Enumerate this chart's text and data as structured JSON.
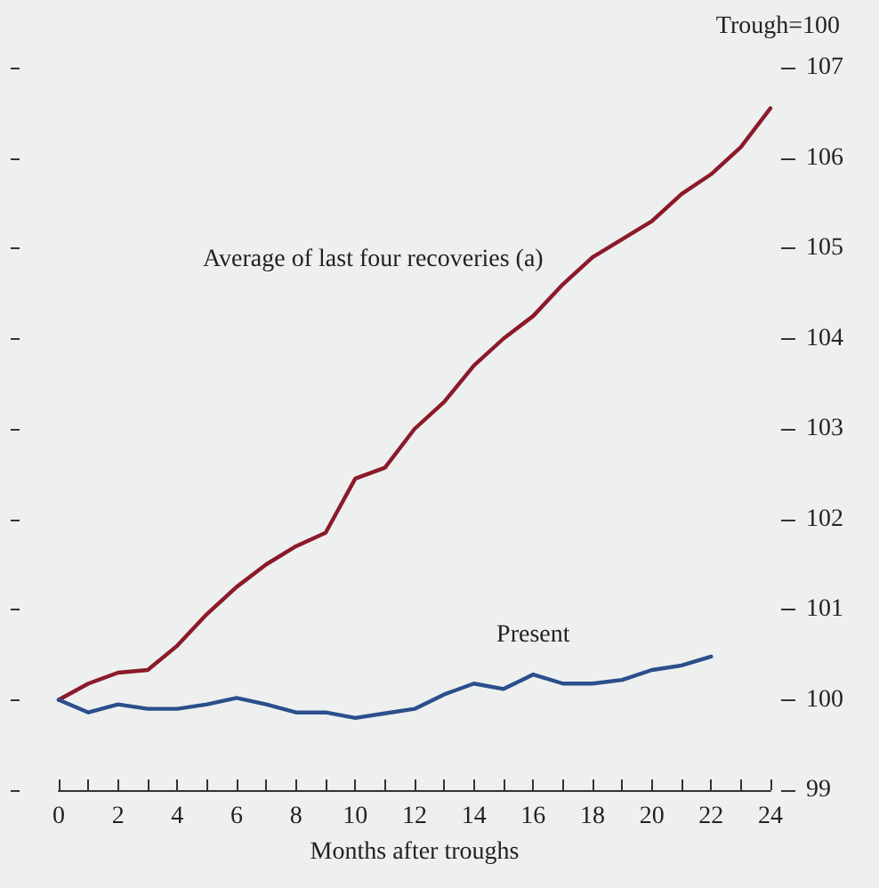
{
  "chart_data": {
    "type": "line",
    "ylabel": "Trough=100",
    "xlabel": "Months after troughs",
    "x": [
      0,
      1,
      2,
      3,
      4,
      5,
      6,
      7,
      8,
      9,
      10,
      11,
      12,
      13,
      14,
      15,
      16,
      17,
      18,
      19,
      20,
      21,
      22,
      23,
      24
    ],
    "series": [
      {
        "name": "Average of last four recoveries (a)",
        "color": "#8b1a2b",
        "values": [
          100.0,
          100.18,
          100.3,
          100.33,
          100.6,
          100.95,
          101.25,
          101.5,
          101.7,
          101.85,
          102.45,
          102.57,
          103.0,
          103.3,
          103.7,
          104.0,
          104.25,
          104.6,
          104.9,
          105.1,
          105.3,
          105.6,
          105.82,
          106.12,
          106.55
        ]
      },
      {
        "name": "Present",
        "color": "#2b4f8c",
        "values": [
          100.0,
          99.86,
          99.95,
          99.9,
          99.9,
          99.95,
          100.02,
          99.95,
          99.86,
          99.86,
          99.8,
          99.85,
          99.9,
          100.06,
          100.18,
          100.12,
          100.28,
          100.18,
          100.18,
          100.22,
          100.33,
          100.38,
          100.48,
          null,
          null
        ]
      }
    ],
    "xlim": [
      0,
      24
    ],
    "xticks": [
      0,
      {
        "value": 1,
        "label": null
      },
      2,
      {
        "value": 3,
        "label": null
      },
      4,
      {
        "value": 5,
        "label": null
      },
      6,
      {
        "value": 7,
        "label": null
      },
      8,
      {
        "value": 9,
        "label": null
      },
      10,
      {
        "value": 11,
        "label": null
      },
      12,
      {
        "value": 13,
        "label": null
      },
      14,
      {
        "value": 15,
        "label": null
      },
      16,
      {
        "value": 17,
        "label": null
      },
      18,
      {
        "value": 19,
        "label": null
      },
      20,
      {
        "value": 21,
        "label": null
      },
      22,
      {
        "value": 23,
        "label": null
      },
      24
    ],
    "ylim": [
      99,
      107
    ],
    "yticks": [
      99,
      100,
      101,
      102,
      103,
      104,
      105,
      106,
      107
    ],
    "grid": false,
    "legend": false,
    "marker": "none",
    "line_style": "solid"
  }
}
